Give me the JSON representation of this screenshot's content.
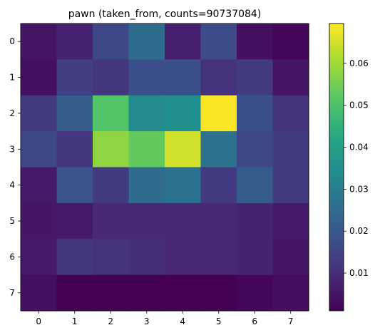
{
  "chart_data": {
    "type": "heatmap",
    "title": "pawn (taken_from, counts=90737084)",
    "xlabel": "",
    "ylabel": "",
    "x_ticks": [
      "0",
      "1",
      "2",
      "3",
      "4",
      "5",
      "6",
      "7"
    ],
    "y_ticks": [
      "0",
      "1",
      "2",
      "3",
      "4",
      "5",
      "6",
      "7"
    ],
    "colormap": "viridis",
    "color_range": [
      0.001,
      0.0695
    ],
    "colorbar_ticks": [
      "0.01",
      "0.02",
      "0.03",
      "0.04",
      "0.05",
      "0.06"
    ],
    "colorbar_tick_values": [
      0.01,
      0.02,
      0.03,
      0.04,
      0.05,
      0.06
    ],
    "values": [
      [
        0.005,
        0.008,
        0.016,
        0.025,
        0.007,
        0.017,
        0.004,
        0.002
      ],
      [
        0.004,
        0.014,
        0.012,
        0.018,
        0.018,
        0.011,
        0.013,
        0.005
      ],
      [
        0.013,
        0.021,
        0.051,
        0.034,
        0.035,
        0.069,
        0.018,
        0.011
      ],
      [
        0.016,
        0.012,
        0.058,
        0.053,
        0.065,
        0.027,
        0.016,
        0.013
      ],
      [
        0.006,
        0.019,
        0.013,
        0.025,
        0.027,
        0.013,
        0.021,
        0.013
      ],
      [
        0.005,
        0.006,
        0.009,
        0.009,
        0.009,
        0.009,
        0.008,
        0.006
      ],
      [
        0.006,
        0.012,
        0.011,
        0.01,
        0.009,
        0.009,
        0.008,
        0.005
      ],
      [
        0.004,
        0.001,
        0.001,
        0.001,
        0.001,
        0.001,
        0.002,
        0.003
      ]
    ]
  }
}
